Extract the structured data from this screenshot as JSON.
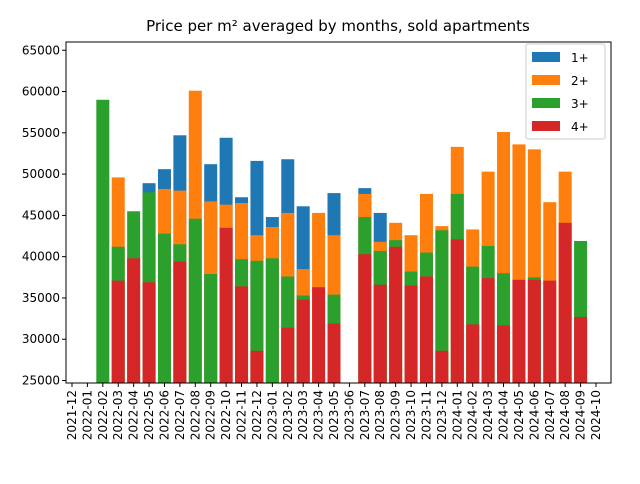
{
  "chart_data": {
    "type": "bar",
    "title": "Price per m² averaged by months, sold apartments",
    "categories": [
      "2021-12",
      "2022-01",
      "2022-02",
      "2022-03",
      "2022-04",
      "2022-05",
      "2022-06",
      "2022-07",
      "2022-08",
      "2022-09",
      "2022-10",
      "2022-11",
      "2022-12",
      "2023-01",
      "2023-02",
      "2023-03",
      "2023-04",
      "2023-05",
      "2023-06",
      "2023-07",
      "2023-08",
      "2023-09",
      "2023-10",
      "2023-11",
      "2023-12",
      "2024-01",
      "2024-02",
      "2024-03",
      "2024-04",
      "2024-05",
      "2024-06",
      "2024-07",
      "2024-08",
      "2024-09",
      "2024-10"
    ],
    "series": [
      {
        "name": "1+",
        "color": "#1f77b4",
        "values": [
          null,
          null,
          null,
          null,
          null,
          48900,
          50600,
          54700,
          null,
          51200,
          54400,
          47200,
          51600,
          44800,
          51800,
          46100,
          null,
          47700,
          null,
          48300,
          45300,
          null,
          null,
          null,
          null,
          null,
          null,
          null,
          null,
          null,
          null,
          null,
          null,
          null,
          null
        ]
      },
      {
        "name": "2+",
        "color": "#ff7f0e",
        "values": [
          null,
          null,
          null,
          49600,
          null,
          null,
          48200,
          48000,
          60100,
          46700,
          46300,
          46500,
          42600,
          43600,
          45300,
          38500,
          45300,
          42600,
          null,
          47600,
          41800,
          44100,
          42600,
          47600,
          43700,
          53300,
          43300,
          50300,
          55100,
          53600,
          53000,
          46600,
          50300,
          null,
          null
        ]
      },
      {
        "name": "3+",
        "color": "#2ca02c",
        "values": [
          null,
          null,
          59000,
          41200,
          45500,
          47800,
          42800,
          41500,
          44600,
          37900,
          null,
          39700,
          39500,
          39800,
          37600,
          35300,
          null,
          35400,
          null,
          44800,
          40700,
          42000,
          38200,
          40500,
          43200,
          47600,
          38800,
          41300,
          38000,
          null,
          37500,
          null,
          null,
          41900,
          null
        ]
      },
      {
        "name": "4+",
        "color": "#d62728",
        "values": [
          null,
          null,
          null,
          37100,
          39800,
          36900,
          null,
          39400,
          null,
          null,
          43500,
          36400,
          28600,
          null,
          31400,
          34800,
          36300,
          31900,
          null,
          40300,
          36600,
          41200,
          36500,
          37600,
          28600,
          42100,
          31800,
          37400,
          31700,
          37200,
          37200,
          37100,
          44100,
          32700,
          null
        ]
      }
    ],
    "ylim": [
      24700,
      66000
    ],
    "yticks": [
      25000,
      30000,
      35000,
      40000,
      45000,
      50000,
      55000,
      60000,
      65000
    ],
    "grid": false,
    "legend": "upper right"
  }
}
